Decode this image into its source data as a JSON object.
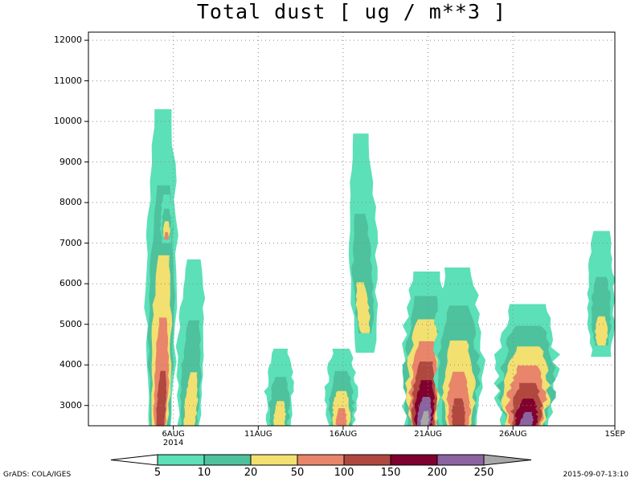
{
  "chart_data": {
    "type": "heatmap",
    "title": "Total dust [ ug / m**3 ]",
    "xlabel": "",
    "ylabel": "",
    "x_range": [
      "2014-08-01",
      "2014-09-01"
    ],
    "x_ticks": [
      {
        "date": "2014-08-06",
        "label": "6AUG",
        "sublabel": "2014"
      },
      {
        "date": "2014-08-11",
        "label": "11AUG",
        "sublabel": ""
      },
      {
        "date": "2014-08-16",
        "label": "16AUG",
        "sublabel": ""
      },
      {
        "date": "2014-08-21",
        "label": "21AUG",
        "sublabel": ""
      },
      {
        "date": "2014-08-26",
        "label": "26AUG",
        "sublabel": ""
      },
      {
        "date": "2014-09-01",
        "label": "1SEP",
        "sublabel": ""
      }
    ],
    "ylim": [
      2500,
      12200
    ],
    "y_ticks": [
      3000,
      4000,
      5000,
      6000,
      7000,
      8000,
      9000,
      10000,
      11000,
      12000
    ],
    "grid": true,
    "levels": [
      5,
      10,
      20,
      50,
      100,
      150,
      200,
      250
    ],
    "colors": [
      "#5ce0b8",
      "#4dc29c",
      "#f2e070",
      "#e8856a",
      "#b0483f",
      "#80002e",
      "#8b63a0",
      "#a8a8a8"
    ],
    "plumes": [
      {
        "date": "2014-08-05.2",
        "peak_ug_m3": 100,
        "top_m": 10300
      },
      {
        "date": "2014-08-05.6",
        "peak_ug_m3": 50,
        "top_m": 8200
      },
      {
        "date": "2014-08-06.9",
        "peak_ug_m3": 20,
        "top_m": 6600
      },
      {
        "date": "2014-08-12.2",
        "peak_ug_m3": 20,
        "top_m": 4400
      },
      {
        "date": "2014-08-15.9",
        "peak_ug_m3": 50,
        "top_m": 4400
      },
      {
        "date": "2014-08-17.3",
        "peak_ug_m3": 20,
        "top_m": 9700
      },
      {
        "date": "2014-08-20.7",
        "peak_ug_m3": 250,
        "top_m": 6300
      },
      {
        "date": "2014-08-22.8",
        "peak_ug_m3": 100,
        "top_m": 6400
      },
      {
        "date": "2014-08-26.7",
        "peak_ug_m3": 200,
        "top_m": 5500
      },
      {
        "date": "2014-08-31.2",
        "peak_ug_m3": 20,
        "top_m": 7300
      }
    ]
  },
  "footer": {
    "left": "GrADS: COLA/IGES",
    "right": "2015-09-07-13:10"
  }
}
